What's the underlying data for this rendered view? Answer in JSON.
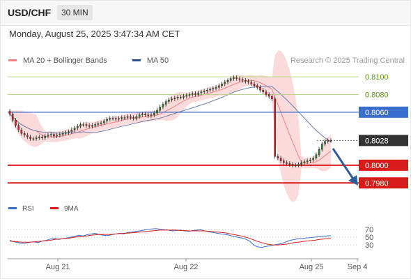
{
  "header": {
    "symbol": "USD/CHF",
    "timeframe": "30 MIN"
  },
  "datetime": "Monday, August 25, 2025 3:47:34 AM CET",
  "legend": [
    {
      "label": "MA 20 + Bollinger Bands",
      "color": "#f08080"
    },
    {
      "label": "MA 50",
      "color": "#2b4d8c"
    }
  ],
  "copyright": "Research © 2025 Trading Central",
  "colors": {
    "candle_up": "#2e7d32",
    "candle_down": "#c62828",
    "bollinger_fill": "#f9d4d4",
    "ma20": "#f08080",
    "ma50": "#6b7fa8",
    "level_green": "#b9d68a",
    "level_blue": "#3b6fcf",
    "level_red": "#d81b1b",
    "rsi": "#3b6fcf",
    "rsi_ma": "#d81b1b",
    "arrow": "#2e5c9a"
  },
  "chart_data": [
    {
      "type": "candlestick",
      "ylim": [
        0.7966,
        0.8108
      ],
      "x_ticks": [
        "Aug 21",
        "Aug 22",
        "Aug 25",
        "Sep 4"
      ],
      "levels": [
        {
          "label": "0.8100",
          "value": 0.81,
          "style": "green"
        },
        {
          "label": "0.8080",
          "value": 0.808,
          "style": "green"
        },
        {
          "label": "0.8060",
          "value": 0.806,
          "style": "blue"
        },
        {
          "label": "0.8028",
          "value": 0.8028,
          "style": "current"
        },
        {
          "label": "0.8000",
          "value": 0.8,
          "style": "red"
        },
        {
          "label": "0.7980",
          "value": 0.798,
          "style": "red"
        }
      ],
      "close": [
        0.8058,
        0.8051,
        0.8045,
        0.804,
        0.8036,
        0.8034,
        0.8032,
        0.803,
        0.803,
        0.8031,
        0.8032,
        0.8031,
        0.8033,
        0.8034,
        0.8035,
        0.8033,
        0.8034,
        0.8035,
        0.8036,
        0.8037,
        0.8038,
        0.804,
        0.8042,
        0.8044,
        0.8046,
        0.8046,
        0.8045,
        0.8044,
        0.8045,
        0.8046,
        0.8047,
        0.8048,
        0.805,
        0.8052,
        0.8053,
        0.8053,
        0.8052,
        0.8053,
        0.8054,
        0.8054,
        0.8055,
        0.8054,
        0.8053,
        0.8055,
        0.8057,
        0.8058,
        0.8057,
        0.8056,
        0.8057,
        0.8059,
        0.8062,
        0.8066,
        0.8069,
        0.8072,
        0.8074,
        0.8075,
        0.8076,
        0.8077,
        0.8077,
        0.8078,
        0.8079,
        0.808,
        0.8081,
        0.808,
        0.8082,
        0.8083,
        0.8084,
        0.8085,
        0.8086,
        0.8087,
        0.8088,
        0.809,
        0.8092,
        0.8094,
        0.8096,
        0.8098,
        0.8099,
        0.8098,
        0.8097,
        0.8096,
        0.8095,
        0.8094,
        0.8092,
        0.809,
        0.8088,
        0.8085,
        0.8083,
        0.808,
        0.8078,
        0.8075,
        0.801,
        0.8008,
        0.8005,
        0.8003,
        0.8002,
        0.8001,
        0.8,
        0.8,
        0.8001,
        0.8003,
        0.8004,
        0.8005,
        0.8006,
        0.8008,
        0.8012,
        0.8018,
        0.8024,
        0.8027,
        0.8028,
        0.8028
      ],
      "rsi_ylim": [
        0,
        100
      ],
      "rsi_levels": [
        70,
        50,
        30
      ],
      "rsi": [
        42,
        38,
        36,
        34,
        35,
        37,
        38,
        36,
        40,
        42,
        45,
        47,
        44,
        46,
        48,
        50,
        52,
        55,
        53,
        56,
        58,
        60,
        57,
        55,
        54,
        56,
        58,
        60,
        58,
        62,
        63,
        65,
        66,
        68,
        70,
        71,
        72,
        70,
        69,
        68,
        66,
        67,
        68,
        66,
        65,
        67,
        68,
        69,
        66,
        64,
        62,
        60,
        58,
        57,
        55,
        52,
        50,
        48,
        45,
        40,
        30,
        25,
        24,
        26,
        28,
        30,
        32,
        34,
        38,
        42,
        44,
        46,
        47,
        48,
        49,
        50,
        51,
        52,
        53,
        54
      ],
      "rsi_ma": [
        40,
        39,
        38,
        37,
        37,
        37,
        38,
        39,
        40,
        41,
        42,
        44,
        45,
        46,
        47,
        48,
        50,
        51,
        52,
        53,
        55,
        56,
        57,
        57,
        57,
        57,
        58,
        59,
        60,
        60,
        61,
        62,
        63,
        64,
        65,
        66,
        67,
        68,
        68,
        68,
        68,
        68,
        67,
        67,
        66,
        66,
        66,
        66,
        66,
        65,
        64,
        63,
        62,
        61,
        59,
        57,
        55,
        53,
        50,
        47,
        43,
        39,
        36,
        33,
        31,
        30,
        30,
        31,
        32,
        34,
        36,
        37,
        39,
        40,
        41,
        42,
        44,
        45,
        46,
        47
      ],
      "rsi_legend": [
        {
          "label": "RSI",
          "color": "#3b6fcf"
        },
        {
          "label": "9MA",
          "color": "#d81b1b"
        }
      ]
    }
  ]
}
